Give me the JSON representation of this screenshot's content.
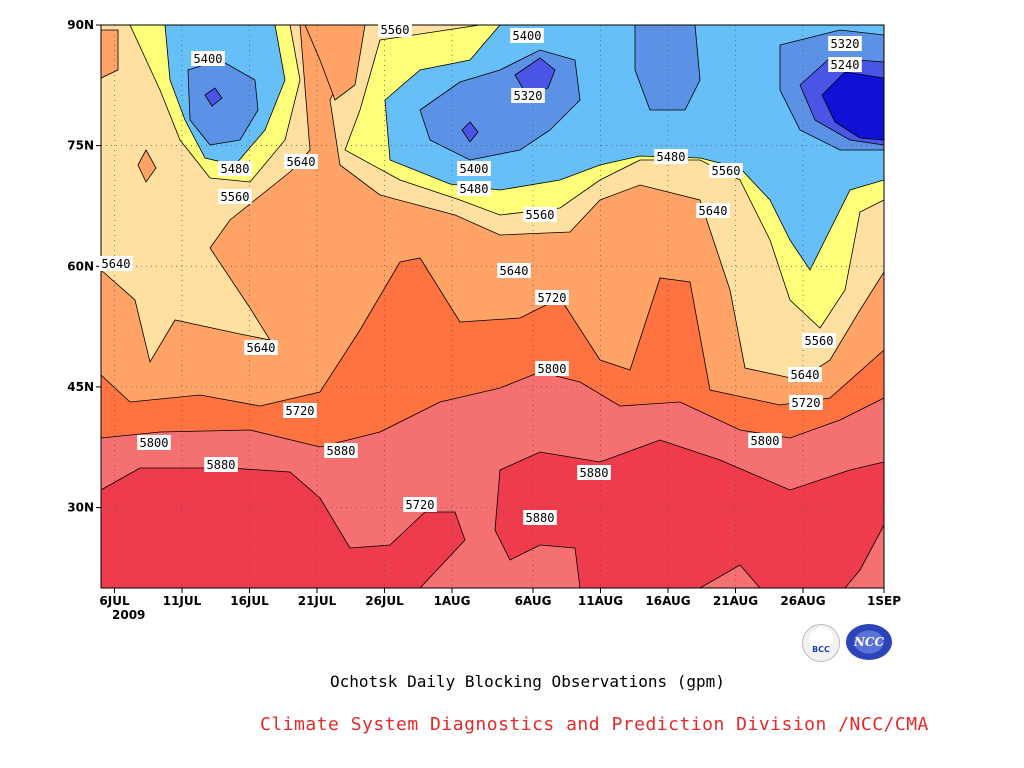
{
  "chart_data": {
    "type": "heatmap",
    "title": "Ochotsk Daily Blocking Observations (gpm)",
    "x_tick_labels": [
      "6JUL",
      "11JUL",
      "16JUL",
      "21JUL",
      "26JUL",
      "1AUG",
      "6AUG",
      "11AUG",
      "16AUG",
      "21AUG",
      "26AUG",
      "1SEP"
    ],
    "x_year_label": "2009",
    "x_range": [
      "2009-07-05",
      "2009-09-01"
    ],
    "y_tick_labels": [
      "30N",
      "45N",
      "60N",
      "75N",
      "90N"
    ],
    "y_range": [
      20,
      90
    ],
    "grid": true,
    "contour_levels": [
      5240,
      5320,
      5400,
      5480,
      5560,
      5640,
      5720,
      5800,
      5880
    ],
    "fill_colors": [
      "#1010d6",
      "#4a55e6",
      "#5b92e6",
      "#66bff6",
      "#ffff7a",
      "#ffe0a0",
      "#ffa366",
      "#ff7340",
      "#f57070",
      "#ef3c4c"
    ],
    "contour_labels": [
      "5400",
      "5480",
      "5560",
      "5640",
      "5640",
      "5640",
      "5560",
      "5400",
      "5320",
      "5400",
      "5480",
      "5560",
      "5640",
      "5720",
      "5720",
      "5800",
      "5880",
      "5880",
      "5800",
      "5720",
      "5880",
      "5880",
      "5800",
      "5720",
      "5640",
      "5480",
      "5560",
      "5560",
      "5640",
      "5320",
      "5240"
    ]
  },
  "branding": {
    "credit": "Climate System Diagnostics and Prediction Division /NCC/CMA",
    "logo_left": "BCC",
    "logo_right": "NCC"
  }
}
